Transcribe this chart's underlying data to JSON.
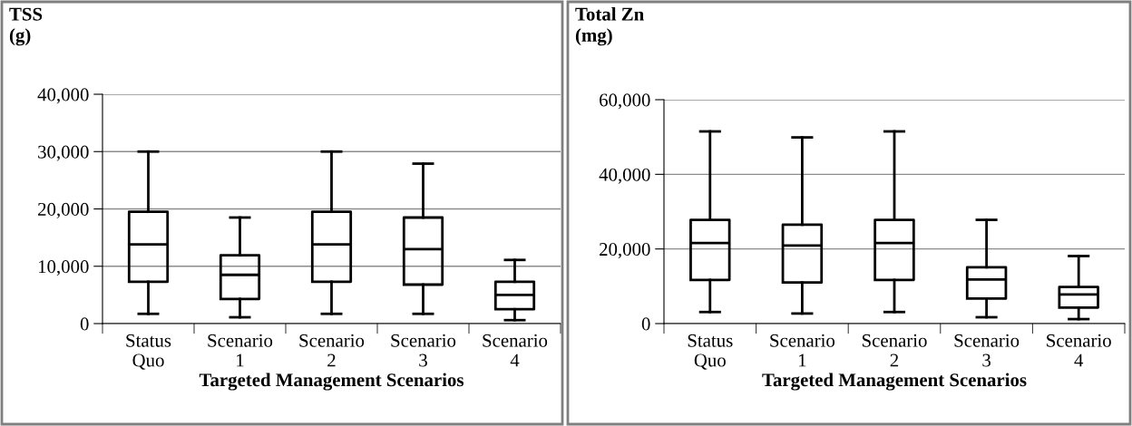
{
  "chart_data": [
    {
      "type": "box",
      "title": "TSS\n(g)",
      "xlabel": "Targeted Management Scenarios",
      "categories": [
        "Status\nQuo",
        "Scenario\n1",
        "Scenario\n2",
        "Scenario\n3",
        "Scenario\n4"
      ],
      "ylim": [
        0,
        40000
      ],
      "yticks": [
        {
          "value": 0,
          "label": "0"
        },
        {
          "value": 10000,
          "label": "10,000"
        },
        {
          "value": 20000,
          "label": "20,000"
        },
        {
          "value": 30000,
          "label": "30,000"
        },
        {
          "value": 40000,
          "label": "40,000"
        }
      ],
      "grid": "y",
      "color": "#000000",
      "boxes": [
        {
          "low": 1700,
          "q1": 7300,
          "median": 13800,
          "q3": 19500,
          "high": 30000
        },
        {
          "low": 1100,
          "q1": 4300,
          "median": 8500,
          "q3": 11900,
          "high": 18500
        },
        {
          "low": 1700,
          "q1": 7300,
          "median": 13800,
          "q3": 19500,
          "high": 30000
        },
        {
          "low": 1700,
          "q1": 6800,
          "median": 13000,
          "q3": 18500,
          "high": 27900
        },
        {
          "low": 600,
          "q1": 2500,
          "median": 5000,
          "q3": 7300,
          "high": 11100
        }
      ]
    },
    {
      "type": "box",
      "title": "Total Zn\n(mg)",
      "xlabel": "Targeted Management Scenarios",
      "categories": [
        "Status\nQuo",
        "Scenario\n1",
        "Scenario\n2",
        "Scenario\n3",
        "Scenario\n4"
      ],
      "ylim": [
        0,
        60000
      ],
      "yticks": [
        {
          "value": 0,
          "label": "0"
        },
        {
          "value": 20000,
          "label": "20,000"
        },
        {
          "value": 40000,
          "label": "40,000"
        },
        {
          "value": 60000,
          "label": "60,000"
        }
      ],
      "grid": "y",
      "color": "#000000",
      "boxes": [
        {
          "low": 3100,
          "q1": 11700,
          "median": 21600,
          "q3": 27800,
          "high": 51500
        },
        {
          "low": 2700,
          "q1": 11000,
          "median": 20900,
          "q3": 26500,
          "high": 49900
        },
        {
          "low": 3100,
          "q1": 11700,
          "median": 21600,
          "q3": 27800,
          "high": 51500
        },
        {
          "low": 1700,
          "q1": 6700,
          "median": 11800,
          "q3": 15100,
          "high": 27800
        },
        {
          "low": 1200,
          "q1": 4300,
          "median": 7800,
          "q3": 9800,
          "high": 18100
        }
      ]
    }
  ]
}
